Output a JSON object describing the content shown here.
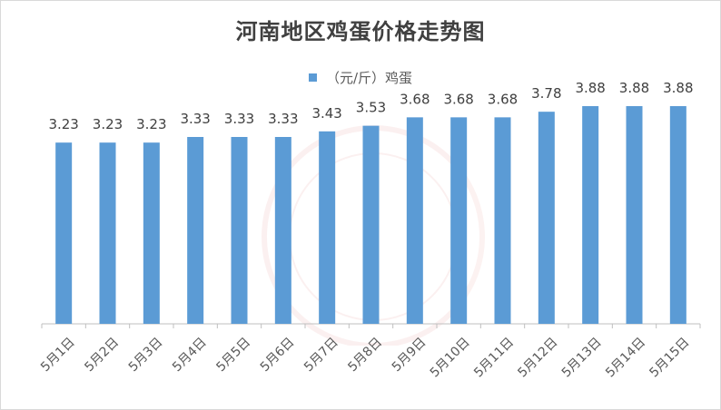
{
  "chart_data": {
    "type": "bar",
    "title": "河南地区鸡蛋价格走势图",
    "legend": "（元/斤）鸡蛋",
    "legend_position": "top-center",
    "grid": false,
    "categories": [
      "5月1日",
      "5月2日",
      "5月3日",
      "5月4日",
      "5月5日",
      "5月6日",
      "5月7日",
      "5月8日",
      "5月9日",
      "5月10日",
      "5月11日",
      "5月12日",
      "5月13日",
      "5月14日",
      "5月15日"
    ],
    "series": [
      {
        "name": "（元/斤）鸡蛋",
        "values": [
          3.23,
          3.23,
          3.23,
          3.33,
          3.33,
          3.33,
          3.43,
          3.53,
          3.68,
          3.68,
          3.68,
          3.78,
          3.88,
          3.88,
          3.88
        ]
      }
    ],
    "value_labels": [
      "3.23",
      "3.23",
      "3.23",
      "3.33",
      "3.33",
      "3.33",
      "3.43",
      "3.53",
      "3.68",
      "3.68",
      "3.68",
      "3.78",
      "3.88",
      "3.88",
      "3.88"
    ],
    "ylim": [
      0,
      4.3
    ],
    "colors": {
      "bar": "#5b9bd5",
      "axis": "#bfbfbf"
    }
  }
}
